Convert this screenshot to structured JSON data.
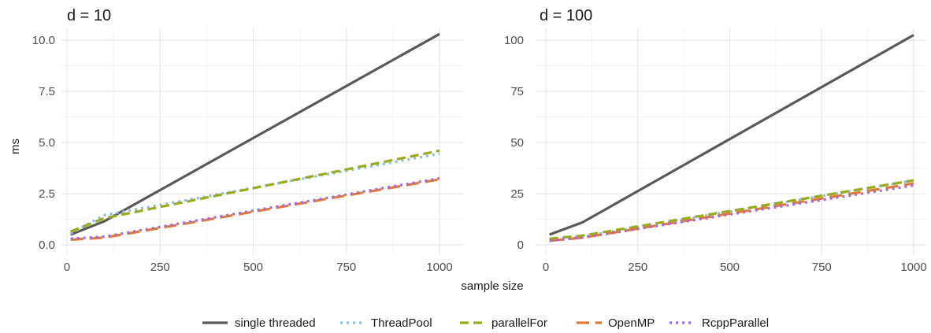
{
  "shared_xlabel": "sample size",
  "shared_ylabel": "ms",
  "legend_position": "bottom",
  "legend": [
    {
      "name": "single threaded",
      "color": "#595959",
      "dash": "solid"
    },
    {
      "name": "ThreadPool",
      "color": "#8dbde0",
      "dash": "dotted"
    },
    {
      "name": "parallelFor",
      "color": "#9aab1a",
      "dash": "dashed"
    },
    {
      "name": "OpenMP",
      "color": "#e07a35",
      "dash": "longdash"
    },
    {
      "name": "RcppParallel",
      "color": "#a66bd6",
      "dash": "dotted"
    }
  ],
  "chart_data": [
    {
      "type": "line",
      "title": "d = 10",
      "xlim": [
        0,
        1000
      ],
      "ylim": [
        0,
        10.5
      ],
      "x_ticks": [
        0,
        250,
        500,
        750,
        1000
      ],
      "y_ticks": [
        0.0,
        2.5,
        5.0,
        7.5,
        10.0
      ],
      "y_tick_labels": [
        "0.0",
        "2.5",
        "5.0",
        "7.5",
        "10.0"
      ],
      "grid": true,
      "x": [
        10,
        100,
        1000
      ],
      "series": [
        {
          "name": "single threaded",
          "values": [
            0.5,
            1.15,
            10.3
          ]
        },
        {
          "name": "ThreadPool",
          "values": [
            0.55,
            1.45,
            4.45
          ]
        },
        {
          "name": "parallelFor",
          "values": [
            0.65,
            1.3,
            4.6
          ]
        },
        {
          "name": "OpenMP",
          "values": [
            0.25,
            0.35,
            3.2
          ]
        },
        {
          "name": "RcppParallel",
          "values": [
            0.3,
            0.4,
            3.25
          ]
        }
      ]
    },
    {
      "type": "line",
      "title": "d = 100",
      "xlim": [
        0,
        1000
      ],
      "ylim": [
        0,
        105
      ],
      "x_ticks": [
        0,
        250,
        500,
        750,
        1000
      ],
      "y_ticks": [
        0,
        25,
        50,
        75,
        100
      ],
      "y_tick_labels": [
        "0",
        "25",
        "50",
        "75",
        "100"
      ],
      "grid": true,
      "x": [
        10,
        100,
        1000
      ],
      "series": [
        {
          "name": "single threaded",
          "values": [
            5.0,
            11.0,
            102.5
          ]
        },
        {
          "name": "ThreadPool",
          "values": [
            2.5,
            4.0,
            31.5
          ]
        },
        {
          "name": "parallelFor",
          "values": [
            3.0,
            4.5,
            31.5
          ]
        },
        {
          "name": "OpenMP",
          "values": [
            2.0,
            3.5,
            30.0
          ]
        },
        {
          "name": "RcppParallel",
          "values": [
            2.0,
            3.5,
            29.0
          ]
        }
      ]
    }
  ]
}
